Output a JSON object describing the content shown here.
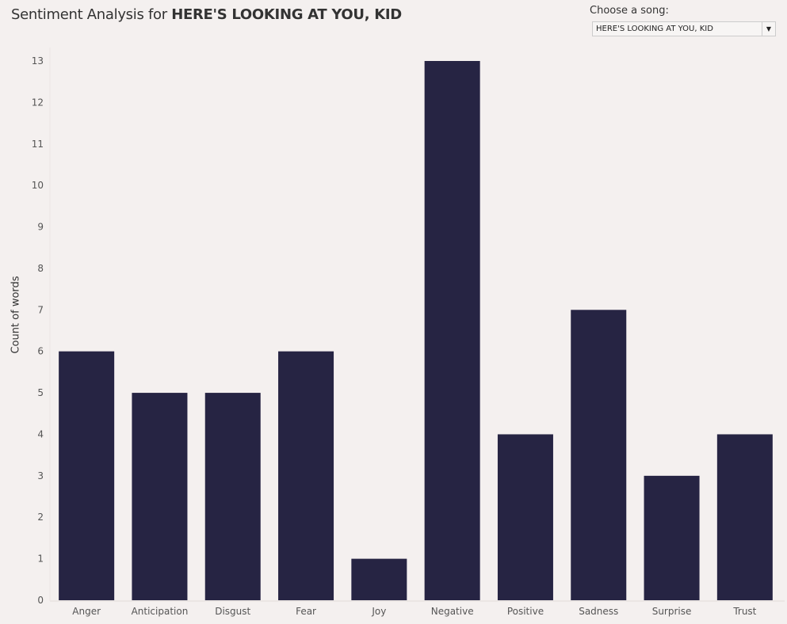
{
  "header": {
    "title_prefix": "Sentiment Analysis for ",
    "title_song": "HERE'S LOOKING AT YOU, KID"
  },
  "control": {
    "label": "Choose a song:",
    "selected": "HERE'S LOOKING AT YOU, KID"
  },
  "colors": {
    "bar": "#262443",
    "background": "#f4f0ef"
  },
  "chart_data": {
    "type": "bar",
    "categories": [
      "Anger",
      "Anticipation",
      "Disgust",
      "Fear",
      "Joy",
      "Negative",
      "Positive",
      "Sadness",
      "Surprise",
      "Trust"
    ],
    "values": [
      6,
      5,
      5,
      6,
      1,
      13,
      4,
      7,
      3,
      4
    ],
    "xlabel": "",
    "ylabel": "Count of words",
    "ylim": [
      0,
      13
    ],
    "yticks": [
      0,
      1,
      2,
      3,
      4,
      5,
      6,
      7,
      8,
      9,
      10,
      11,
      12,
      13
    ],
    "grid": false
  }
}
